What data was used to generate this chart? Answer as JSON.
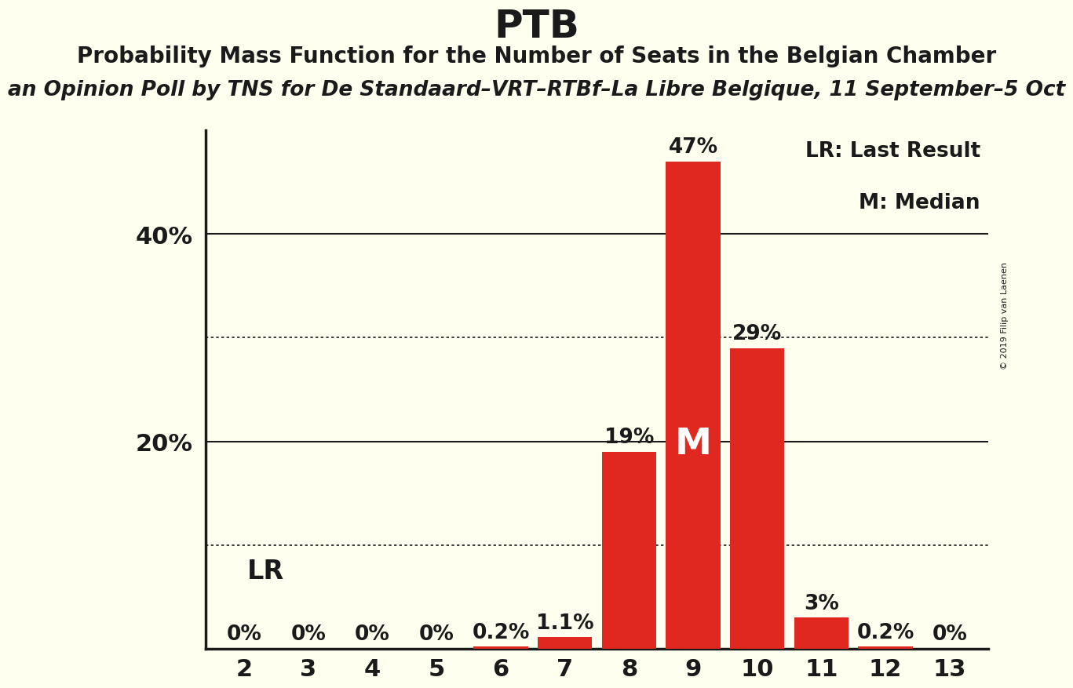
{
  "title": "PTB",
  "subtitle": "Probability Mass Function for the Number of Seats in the Belgian Chamber",
  "poll_text": "an Opinion Poll by TNS for De Standaard–VRT–RTBf–La Libre Belgique, 11 September–5 Oct",
  "copyright_text": "© 2019 Filip van Laenen",
  "categories": [
    2,
    3,
    4,
    5,
    6,
    7,
    8,
    9,
    10,
    11,
    12,
    13
  ],
  "values": [
    0.0,
    0.0,
    0.0,
    0.0,
    0.2,
    1.1,
    19.0,
    47.0,
    29.0,
    3.0,
    0.2,
    0.0
  ],
  "labels": [
    "0%",
    "0%",
    "0%",
    "0%",
    "0.2%",
    "1.1%",
    "19%",
    "47%",
    "29%",
    "3%",
    "0.2%",
    "0%"
  ],
  "bar_color": "#e12820",
  "background_color": "#fffff0",
  "text_color": "#1a1a1a",
  "median_bar": 9,
  "median_label": "M",
  "lr_label": "LR",
  "legend_lr": "LR: Last Result",
  "legend_m": "M: Median",
  "ylim": [
    0,
    50
  ],
  "solid_gridlines": [
    20,
    40
  ],
  "dotted_gridlines": [
    10,
    30
  ],
  "title_fontsize": 36,
  "subtitle_fontsize": 20,
  "poll_fontsize": 19,
  "axis_fontsize": 22,
  "bar_label_fontsize": 19,
  "legend_fontsize": 19,
  "lr_fontsize": 24,
  "median_fontsize": 34
}
